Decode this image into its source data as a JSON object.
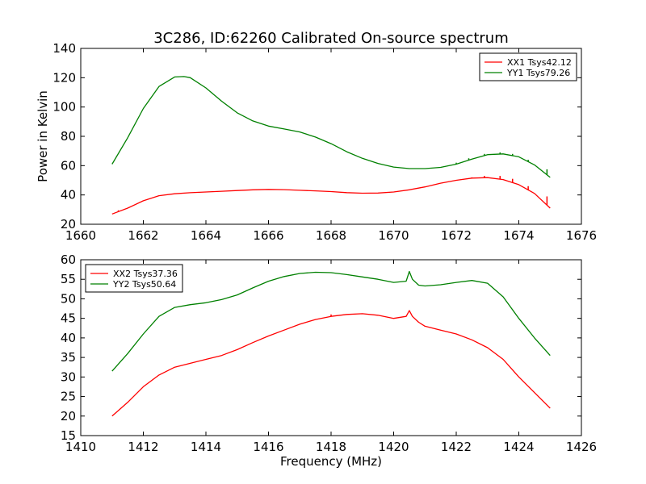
{
  "figure": {
    "title": "3C286, ID:62260 Calibrated On-source spectrum",
    "xlabel": "Frequency (MHz)"
  },
  "chart_data": [
    {
      "type": "line",
      "title": "3C286, ID:62260 Calibrated On-source spectrum",
      "xlabel": "",
      "ylabel": "Power in Kelvin",
      "xlim": [
        1660,
        1676
      ],
      "ylim": [
        20,
        140
      ],
      "xticks": [
        1660,
        1662,
        1664,
        1666,
        1668,
        1670,
        1672,
        1674,
        1676
      ],
      "yticks": [
        20,
        40,
        60,
        80,
        100,
        120,
        140
      ],
      "grid": false,
      "legend_position": "top-right",
      "series": [
        {
          "name": "XX1 Tsys42.12",
          "color": "#ff0000",
          "x": [
            1661.0,
            1661.5,
            1662.0,
            1662.5,
            1663.0,
            1663.5,
            1664.0,
            1664.5,
            1665.0,
            1665.5,
            1666.0,
            1666.5,
            1667.0,
            1667.5,
            1668.0,
            1668.5,
            1669.0,
            1669.5,
            1670.0,
            1670.5,
            1671.0,
            1671.5,
            1672.0,
            1672.5,
            1673.0,
            1673.5,
            1674.0,
            1674.5,
            1675.0
          ],
          "y": [
            27,
            31,
            36,
            39.5,
            40.8,
            41.5,
            42,
            42.5,
            43,
            43.5,
            43.8,
            43.6,
            43.2,
            42.8,
            42.3,
            41.6,
            41.2,
            41.3,
            42,
            43.5,
            45.5,
            48,
            50,
            51.5,
            51.8,
            50.5,
            47,
            41,
            31
          ],
          "spikes": [
            {
              "x": 1661.2,
              "y": 29.5
            },
            {
              "x": 1672.5,
              "y": 52
            },
            {
              "x": 1672.9,
              "y": 53
            },
            {
              "x": 1673.4,
              "y": 53
            },
            {
              "x": 1673.8,
              "y": 51
            },
            {
              "x": 1674.3,
              "y": 46
            },
            {
              "x": 1674.9,
              "y": 39
            }
          ]
        },
        {
          "name": "YY1 Tsys79.26",
          "color": "#008000",
          "x": [
            1661.0,
            1661.5,
            1662.0,
            1662.5,
            1663.0,
            1663.3,
            1663.5,
            1664.0,
            1664.5,
            1665.0,
            1665.5,
            1666.0,
            1666.5,
            1667.0,
            1667.5,
            1668.0,
            1668.5,
            1669.0,
            1669.5,
            1670.0,
            1670.5,
            1671.0,
            1671.5,
            1672.0,
            1672.5,
            1673.0,
            1673.5,
            1674.0,
            1674.5,
            1675.0
          ],
          "y": [
            61,
            79,
            99,
            114,
            120.5,
            120.8,
            120,
            113,
            104,
            96,
            90.5,
            87,
            85,
            83,
            79.5,
            75,
            69.5,
            65,
            61.5,
            59,
            58,
            58,
            58.8,
            61,
            64.5,
            67.5,
            68,
            66,
            60.5,
            52
          ],
          "spikes": [
            {
              "x": 1672.0,
              "y": 62
            },
            {
              "x": 1672.4,
              "y": 65
            },
            {
              "x": 1672.9,
              "y": 68
            },
            {
              "x": 1673.4,
              "y": 69
            },
            {
              "x": 1673.8,
              "y": 68
            },
            {
              "x": 1674.3,
              "y": 64
            },
            {
              "x": 1674.9,
              "y": 57.5
            }
          ]
        }
      ]
    },
    {
      "type": "line",
      "title": "",
      "xlabel": "Frequency (MHz)",
      "ylabel": "",
      "xlim": [
        1410,
        1426
      ],
      "ylim": [
        15,
        60
      ],
      "xticks": [
        1410,
        1412,
        1414,
        1416,
        1418,
        1420,
        1422,
        1424,
        1426
      ],
      "yticks": [
        15,
        20,
        25,
        30,
        35,
        40,
        45,
        50,
        55,
        60
      ],
      "grid": false,
      "legend_position": "top-left",
      "series": [
        {
          "name": "XX2 Tsys37.36",
          "color": "#ff0000",
          "x": [
            1411.0,
            1411.5,
            1412.0,
            1412.5,
            1413.0,
            1413.5,
            1414.0,
            1414.5,
            1415.0,
            1415.5,
            1416.0,
            1416.5,
            1417.0,
            1417.5,
            1418.0,
            1418.5,
            1419.0,
            1419.5,
            1420.0,
            1420.4,
            1420.5,
            1420.6,
            1420.8,
            1421.0,
            1421.5,
            1422.0,
            1422.5,
            1423.0,
            1423.5,
            1424.0,
            1424.5,
            1425.0
          ],
          "y": [
            20,
            23.5,
            27.5,
            30.5,
            32.5,
            33.5,
            34.5,
            35.5,
            37,
            38.8,
            40.5,
            42,
            43.5,
            44.7,
            45.5,
            46,
            46.2,
            45.8,
            45,
            45.5,
            47,
            45.5,
            44,
            43,
            42,
            41,
            39.5,
            37.5,
            34.5,
            30,
            26,
            22
          ],
          "spikes": [
            {
              "x": 1418.0,
              "y": 46
            }
          ]
        },
        {
          "name": "YY2 Tsys50.64",
          "color": "#008000",
          "x": [
            1411.0,
            1411.5,
            1412.0,
            1412.5,
            1413.0,
            1413.5,
            1414.0,
            1414.5,
            1415.0,
            1415.5,
            1416.0,
            1416.5,
            1417.0,
            1417.5,
            1418.0,
            1418.5,
            1419.0,
            1419.5,
            1420.0,
            1420.4,
            1420.5,
            1420.6,
            1420.8,
            1421.0,
            1421.5,
            1422.0,
            1422.5,
            1423.0,
            1423.5,
            1424.0,
            1424.5,
            1425.0
          ],
          "y": [
            31.5,
            36,
            41,
            45.5,
            47.8,
            48.5,
            49,
            49.8,
            51,
            52.8,
            54.5,
            55.7,
            56.5,
            56.8,
            56.7,
            56.2,
            55.6,
            55,
            54.2,
            54.5,
            57,
            55,
            53.5,
            53.3,
            53.6,
            54.2,
            54.7,
            54,
            50.5,
            45,
            40,
            35.5
          ],
          "spikes": []
        }
      ]
    }
  ]
}
